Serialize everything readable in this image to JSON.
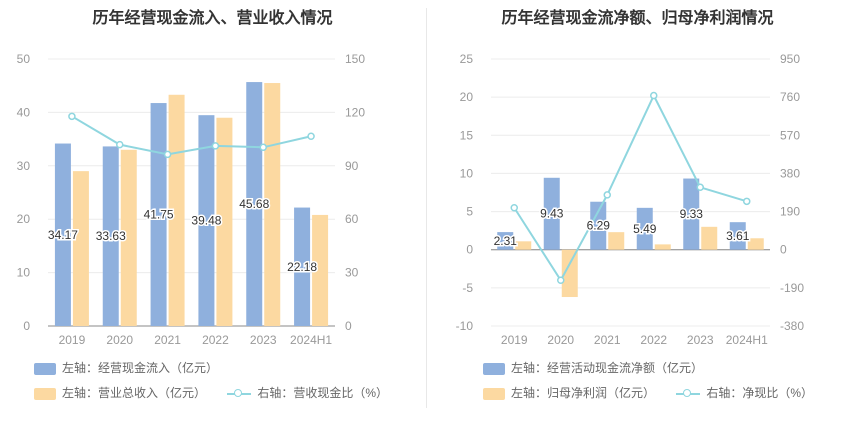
{
  "colors": {
    "bar_blue": "#8fb0dd",
    "bar_orange": "#fcd9a1",
    "line_teal": "#8fd6df",
    "axis_text": "#999999",
    "grid": "#ececec"
  },
  "left": {
    "title": "历年经营现金流入、营业收入情况",
    "legend": {
      "bar1": "左轴：经营现金流入（亿元）",
      "bar2": "左轴：营业总收入（亿元）",
      "line": "右轴：营收现金比（%）"
    }
  },
  "right": {
    "title": "历年经营现金流净额、归母净利润情况",
    "legend": {
      "bar1": "左轴：经营活动现金流净额（亿元）",
      "bar2": "左轴：归母净利润（亿元）",
      "line": "右轴：净现比（%）"
    }
  },
  "chart_data": [
    {
      "type": "bar",
      "categories": [
        "2019",
        "2020",
        "2021",
        "2022",
        "2023",
        "2024H1"
      ],
      "series": [
        {
          "name": "左轴：经营现金流入（亿元）",
          "axis": "left",
          "values": [
            34.17,
            33.63,
            41.75,
            39.48,
            45.68,
            22.18
          ],
          "labels": [
            "34.17",
            "33.63",
            "41.75",
            "39.48",
            "45.68",
            "22.18"
          ]
        },
        {
          "name": "左轴：营业总收入（亿元）",
          "axis": "left",
          "values": [
            29.0,
            33.0,
            43.3,
            39.0,
            45.5,
            20.8
          ]
        },
        {
          "name": "右轴：营收现金比（%）",
          "axis": "right",
          "kind": "line",
          "values": [
            117.8,
            101.9,
            96.4,
            101.2,
            100.4,
            106.6
          ]
        }
      ],
      "y_left": {
        "min": 0,
        "max": 50,
        "ticks": [
          "0",
          "10",
          "20",
          "30",
          "40",
          "50"
        ]
      },
      "y_right": {
        "min": 0,
        "max": 150,
        "ticks": [
          "0",
          "30",
          "60",
          "90",
          "120",
          "150"
        ]
      },
      "grid": true,
      "legend_position": "bottom"
    },
    {
      "type": "bar",
      "categories": [
        "2019",
        "2020",
        "2021",
        "2022",
        "2023",
        "2024H1"
      ],
      "series": [
        {
          "name": "左轴：经营活动现金流净额（亿元）",
          "axis": "left",
          "values": [
            2.31,
            9.43,
            6.29,
            5.49,
            9.33,
            3.61
          ],
          "labels": [
            "2.31",
            "9.43",
            "6.29",
            "5.49",
            "9.33",
            "3.61"
          ]
        },
        {
          "name": "左轴：归母净利润（亿元）",
          "axis": "left",
          "values": [
            1.1,
            -6.2,
            2.3,
            0.7,
            3.0,
            1.5
          ]
        },
        {
          "name": "右轴：净现比（%）",
          "axis": "right",
          "kind": "line",
          "values": [
            209,
            -152,
            273,
            768,
            311,
            241
          ]
        }
      ],
      "y_left": {
        "min": -10,
        "max": 25,
        "ticks": [
          "-10",
          "-5",
          "0",
          "5",
          "10",
          "15",
          "20",
          "25"
        ]
      },
      "y_right": {
        "min": -380,
        "max": 950,
        "ticks": [
          "-380",
          "-190",
          "0",
          "190",
          "380",
          "570",
          "760",
          "950"
        ]
      },
      "grid": true,
      "legend_position": "bottom"
    }
  ]
}
